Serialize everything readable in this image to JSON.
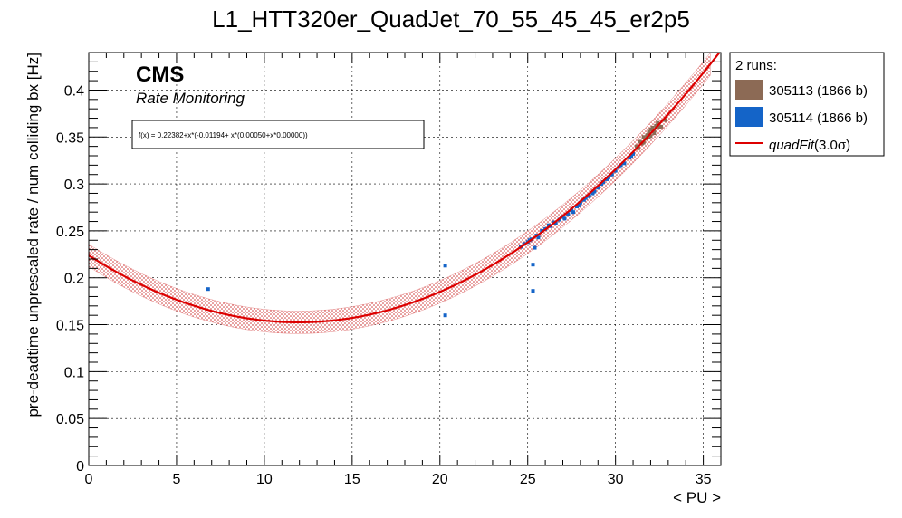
{
  "chart_data": {
    "type": "scatter",
    "title": "L1_HTT320er_QuadJet_70_55_45_45_er2p5",
    "xlabel": "< PU >",
    "ylabel": "pre-deadtime unprescaled rate / num colliding bx [Hz]",
    "xlim": [
      0,
      36
    ],
    "ylim": [
      0,
      0.44
    ],
    "x_ticks": [
      "0",
      "5",
      "10",
      "15",
      "20",
      "25",
      "30",
      "35"
    ],
    "y_ticks": [
      "0",
      "0.05",
      "0.1",
      "0.15",
      "0.2",
      "0.25",
      "0.3",
      "0.35",
      "0.4"
    ],
    "grid": true,
    "cms_label": "CMS",
    "cms_sublabel": "Rate Monitoring",
    "fit_text": "f(x) = 0.22382+x*(-0.01194+ x*(0.00050+x*0.00000))",
    "fit": {
      "name": "quadFit",
      "label": "quadFit(3.0σ)",
      "color": "#dd0000",
      "coefficients": [
        0.22382,
        -0.01194,
        0.0005,
        0.0
      ],
      "band_sigma": 0.012
    },
    "legend": {
      "position": "top-right",
      "header": "2 runs:",
      "entries": [
        {
          "label": "305113 (1866 b)",
          "color": "#8c6a55"
        },
        {
          "label": "305114 (1866 b)",
          "color": "#1464c8"
        },
        {
          "label_main": "quadFit",
          "label_rest": "(3.0σ)",
          "color": "#dd0000"
        }
      ]
    },
    "series": [
      {
        "name": "305113 (1866 b)",
        "color": "#8c6a55",
        "points": [
          [
            31.2,
            0.34
          ],
          [
            31.4,
            0.345
          ],
          [
            31.5,
            0.343
          ],
          [
            31.6,
            0.35
          ],
          [
            31.7,
            0.348
          ],
          [
            31.8,
            0.352
          ],
          [
            31.9,
            0.355
          ],
          [
            32.0,
            0.358
          ],
          [
            32.1,
            0.36
          ],
          [
            32.2,
            0.357
          ],
          [
            32.3,
            0.362
          ],
          [
            32.4,
            0.365
          ],
          [
            32.5,
            0.36
          ],
          [
            31.3,
            0.338
          ],
          [
            31.9,
            0.35
          ],
          [
            32.2,
            0.354
          ],
          [
            32.8,
            0.368
          ],
          [
            31.6,
            0.344
          ],
          [
            32.0,
            0.351
          ],
          [
            32.6,
            0.361
          ]
        ]
      },
      {
        "name": "305114 (1866 b)",
        "color": "#1464c8",
        "points": [
          [
            6.8,
            0.188
          ],
          [
            20.3,
            0.213
          ],
          [
            20.3,
            0.16
          ],
          [
            25.3,
            0.214
          ],
          [
            25.3,
            0.186
          ],
          [
            25.4,
            0.232
          ],
          [
            24.6,
            0.233
          ],
          [
            25.0,
            0.238
          ],
          [
            25.2,
            0.241
          ],
          [
            25.5,
            0.245
          ],
          [
            25.8,
            0.25
          ],
          [
            26.0,
            0.252
          ],
          [
            26.2,
            0.256
          ],
          [
            26.5,
            0.259
          ],
          [
            26.8,
            0.262
          ],
          [
            27.0,
            0.265
          ],
          [
            27.3,
            0.268
          ],
          [
            27.5,
            0.272
          ],
          [
            27.8,
            0.276
          ],
          [
            28.0,
            0.28
          ],
          [
            28.2,
            0.283
          ],
          [
            28.5,
            0.287
          ],
          [
            28.8,
            0.292
          ],
          [
            29.0,
            0.296
          ],
          [
            29.2,
            0.3
          ],
          [
            29.5,
            0.305
          ],
          [
            29.8,
            0.31
          ],
          [
            30.0,
            0.314
          ],
          [
            30.2,
            0.318
          ],
          [
            30.5,
            0.322
          ],
          [
            30.8,
            0.328
          ],
          [
            31.0,
            0.332
          ],
          [
            25.6,
            0.243
          ],
          [
            26.3,
            0.255
          ],
          [
            27.1,
            0.263
          ],
          [
            27.9,
            0.277
          ],
          [
            28.7,
            0.29
          ],
          [
            29.3,
            0.302
          ],
          [
            30.3,
            0.32
          ],
          [
            24.8,
            0.236
          ],
          [
            26.6,
            0.258
          ],
          [
            28.3,
            0.285
          ],
          [
            29.6,
            0.307
          ],
          [
            30.9,
            0.33
          ],
          [
            25.1,
            0.24
          ],
          [
            27.6,
            0.27
          ]
        ]
      }
    ]
  }
}
